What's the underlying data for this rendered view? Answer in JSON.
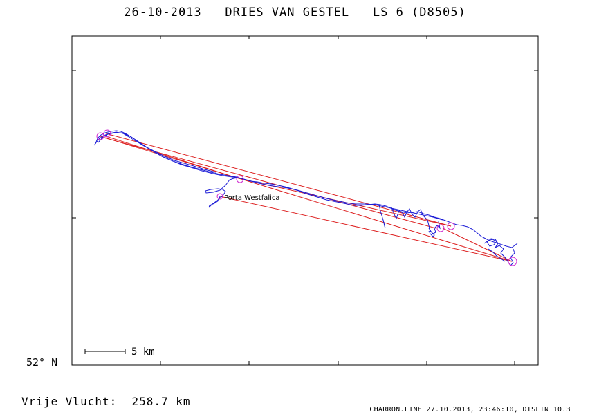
{
  "header": {
    "date": "26-10-2013",
    "pilot": "DRIES VAN GESTEL",
    "class_code": "LS 6 (D8505)"
  },
  "map": {
    "latitude_label": "52° N",
    "scale_label": "5 km",
    "place_label": "Porta Westfalica",
    "colors": {
      "track": "#1c1cd6",
      "task_lines": "#dd2020",
      "turnpoints": "#d02ad0",
      "frame": "#000000"
    }
  },
  "footer": {
    "free_flight_label": "Vrije Vlucht:",
    "free_flight_value": "258.7 km",
    "software_info": "CHARRON.LINE 27.10.2013, 23:46:10, DISLIN 10.3"
  }
}
